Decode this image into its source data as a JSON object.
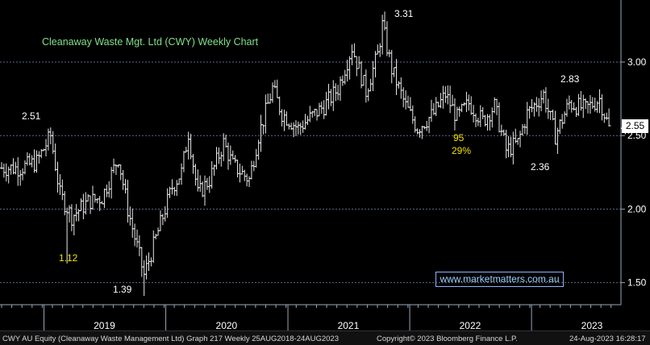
{
  "chart_data": {
    "type": "ohlc",
    "title": "Cleanaway Waste Mgt. Ltd (CWY) Weekly Chart",
    "y_ticks": [
      1.5,
      2.0,
      2.5,
      3.0
    ],
    "y_tick_labels": [
      "1.50",
      "2.00",
      "2.50",
      "3.00"
    ],
    "ylim": [
      1.35,
      3.4
    ],
    "x_labels": [
      "2019",
      "2020",
      "2021",
      "2022",
      "2023"
    ],
    "last_price": "2.55",
    "annotations": [
      {
        "text": "2.51",
        "color": "#ffffff",
        "date": "2019-01-14"
      },
      {
        "text": "1.12",
        "color": "#f2e200",
        "date": "2019-03-11"
      },
      {
        "text": "1.39",
        "color": "#ffffff",
        "date": "2019-10-28"
      },
      {
        "text": "3.31",
        "color": "#ffffff",
        "date": "2021-10-11"
      },
      {
        "text": "95",
        "color": "#f2e200",
        "date": "2022-02-28"
      },
      {
        "text": "29%",
        "color": "#f2e200",
        "date": "2022-02-28"
      },
      {
        "text": "2.36",
        "color": "#ffffff",
        "date": "2022-10-17"
      },
      {
        "text": "2.83",
        "color": "#ffffff",
        "date": "2023-02-06"
      }
    ],
    "anchors": [
      [
        "2018-08-27",
        2.28
      ],
      [
        "2018-10-22",
        2.28
      ],
      [
        "2018-12-10",
        2.32
      ],
      [
        "2019-01-21",
        2.5
      ],
      [
        "2019-02-18",
        2.1
      ],
      [
        "2019-03-25",
        1.95
      ],
      [
        "2019-05-13",
        2.05
      ],
      [
        "2019-06-24",
        2.08
      ],
      [
        "2019-08-12",
        2.35
      ],
      [
        "2019-09-09",
        2.0
      ],
      [
        "2019-10-28",
        1.55
      ],
      [
        "2019-12-23",
        1.95
      ],
      [
        "2020-01-20",
        2.15
      ],
      [
        "2020-02-17",
        2.25
      ],
      [
        "2020-03-09",
        2.52
      ],
      [
        "2020-04-06",
        2.1
      ],
      [
        "2020-05-11",
        2.2
      ],
      [
        "2020-06-22",
        2.45
      ],
      [
        "2020-07-20",
        2.3
      ],
      [
        "2020-09-07",
        2.2
      ],
      [
        "2020-10-05",
        2.5
      ],
      [
        "2020-11-16",
        2.82
      ],
      [
        "2020-12-14",
        2.65
      ],
      [
        "2021-02-01",
        2.55
      ],
      [
        "2021-03-08",
        2.62
      ],
      [
        "2021-04-19",
        2.7
      ],
      [
        "2021-05-31",
        2.82
      ],
      [
        "2021-07-12",
        3.1
      ],
      [
        "2021-08-23",
        2.8
      ],
      [
        "2021-09-27",
        3.05
      ],
      [
        "2021-10-11",
        3.25
      ],
      [
        "2021-11-08",
        2.95
      ],
      [
        "2021-12-20",
        2.7
      ],
      [
        "2022-01-24",
        2.55
      ],
      [
        "2022-03-14",
        2.65
      ],
      [
        "2022-04-18",
        2.78
      ],
      [
        "2022-05-23",
        2.62
      ],
      [
        "2022-06-27",
        2.72
      ],
      [
        "2022-08-08",
        2.6
      ],
      [
        "2022-09-12",
        2.7
      ],
      [
        "2022-10-17",
        2.4
      ],
      [
        "2022-11-21",
        2.45
      ],
      [
        "2022-12-19",
        2.65
      ],
      [
        "2023-02-06",
        2.78
      ],
      [
        "2023-03-13",
        2.5
      ],
      [
        "2023-04-24",
        2.72
      ],
      [
        "2023-06-12",
        2.68
      ],
      [
        "2023-07-24",
        2.75
      ],
      [
        "2023-08-21",
        2.55
      ]
    ]
  },
  "watermark": "www.marketmatters.com.au",
  "footer": {
    "left": "CWY AU Equity (Cleanaway Waste Management Ltd) Graph 217  Weekly 25AUG2018-24AUG2023",
    "middle": "Copyright© 2023 Bloomberg Finance L.P.",
    "right": "24-Aug-2023 16:28:17"
  },
  "colors": {
    "background": "#000000",
    "bars": "#e8e8e8",
    "title": "#7fe08a",
    "highlight": "#f2e200",
    "watermark": "#9fd0ff"
  }
}
